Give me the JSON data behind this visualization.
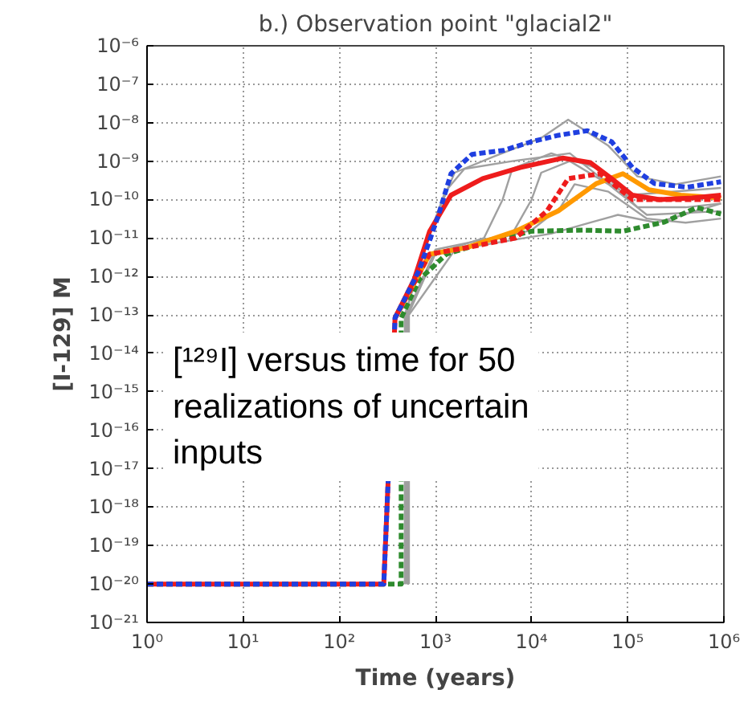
{
  "chart_data": {
    "type": "line",
    "title": "b.) Observation point \"glacial2\"",
    "xlabel": "Time (years)",
    "ylabel": "[I-129] M",
    "annotations": [
      "[¹²⁹I] versus time for 50 realizations of uncertain inputs"
    ],
    "log": "xy",
    "grid": true,
    "marker": "none",
    "xlim": [
      1,
      1000000
    ],
    "ylim": [
      1e-21,
      1e-06
    ],
    "xticks": [
      {
        "value": 1,
        "label": "10⁰"
      },
      {
        "value": 10,
        "label": "10¹"
      },
      {
        "value": 100,
        "label": "10²"
      },
      {
        "value": 1000,
        "label": "10³"
      },
      {
        "value": 10000,
        "label": "10⁴"
      },
      {
        "value": 100000,
        "label": "10⁵"
      },
      {
        "value": 1000000,
        "label": "10⁶"
      }
    ],
    "yticks": [
      {
        "value": 1e-21,
        "label": "10⁻²¹"
      },
      {
        "value": 1e-20,
        "label": "10⁻²⁰"
      },
      {
        "value": 1e-19,
        "label": "10⁻¹⁹"
      },
      {
        "value": 1e-18,
        "label": "10⁻¹⁸"
      },
      {
        "value": 1e-17,
        "label": "10⁻¹⁷"
      },
      {
        "value": 1e-16,
        "label": "10⁻¹⁶"
      },
      {
        "value": 1e-15,
        "label": "10⁻¹⁵"
      },
      {
        "value": 1e-14,
        "label": "10⁻¹⁴"
      },
      {
        "value": 1e-13,
        "label": "10⁻¹³"
      },
      {
        "value": 1e-12,
        "label": "10⁻¹²"
      },
      {
        "value": 1e-11,
        "label": "10⁻¹¹"
      },
      {
        "value": 1e-10,
        "label": "10⁻¹⁰"
      },
      {
        "value": 1e-09,
        "label": "10⁻⁹"
      },
      {
        "value": 1e-08,
        "label": "10⁻⁸"
      },
      {
        "value": 1e-07,
        "label": "10⁻⁷"
      },
      {
        "value": 1e-06,
        "label": "10⁻⁶"
      }
    ],
    "series": [
      {
        "color": "#a0a0a0",
        "line_style": "solid",
        "x": [
          490,
          490,
          710,
          1120,
          1580,
          4000,
          12600,
          24000,
          63000,
          126000,
          316000,
          933000
        ],
        "values": [
          1e-20,
          1e-13,
          3.2e-12,
          6.3e-11,
          5e-10,
          1.3e-09,
          4e-09,
          1.2e-08,
          2.5e-09,
          4e-10,
          2.5e-10,
          4e-10
        ]
      },
      {
        "color": "#a0a0a0",
        "line_style": "solid",
        "x": [
          520,
          520,
          1000,
          3200,
          5000,
          6300,
          16000,
          50000,
          126000,
          400000,
          933000
        ],
        "values": [
          1e-20,
          1e-13,
          4e-12,
          1e-11,
          1e-10,
          6.3e-10,
          1.6e-09,
          6.3e-10,
          6.3e-11,
          6.3e-11,
          7.9e-11
        ]
      },
      {
        "color": "#a0a0a0",
        "line_style": "solid",
        "x": [
          500,
          500,
          1000,
          6300,
          10000,
          12600,
          25000,
          63000,
          158000,
          933000
        ],
        "values": [
          1e-20,
          1e-13,
          5e-12,
          1.3e-11,
          1e-10,
          5e-10,
          1e-09,
          2.5e-10,
          4e-11,
          5e-11
        ]
      },
      {
        "color": "#a0a0a0",
        "line_style": "solid",
        "x": [
          510,
          510,
          1000,
          10000,
          20000,
          28000,
          63000,
          158000,
          400000,
          933000
        ],
        "values": [
          1e-20,
          1e-13,
          4e-12,
          1.6e-11,
          6.3e-11,
          2.5e-10,
          1.6e-10,
          3.2e-11,
          2.5e-11,
          3.2e-11
        ]
      },
      {
        "color": "#a0a0a0",
        "line_style": "solid",
        "x": [
          530,
          530,
          1600,
          16000,
          40000,
          79000,
          200000,
          933000
        ],
        "values": [
          1e-20,
          1e-13,
          5e-12,
          1.3e-11,
          2.5e-11,
          4e-11,
          2.5e-11,
          7.9e-11
        ]
      },
      {
        "color": "#a0a0a0",
        "line_style": "solid",
        "x": [
          480,
          480,
          790,
          1260,
          2000,
          6300,
          25000,
          50000,
          100000,
          933000
        ],
        "values": [
          1e-20,
          1e-13,
          6.3e-12,
          1.6e-10,
          6.3e-10,
          1e-09,
          1.6e-09,
          4e-10,
          1.3e-10,
          2e-10
        ]
      },
      {
        "color": "#2e8b2e",
        "line_style": "dashed",
        "x": [
          1,
          440,
          440,
          680,
          1300,
          3100,
          10000,
          35000,
          89000,
          240000,
          525000,
          933000
        ],
        "values": [
          1e-20,
          1e-20,
          8.3e-14,
          8.3e-13,
          3.8e-12,
          7.4e-12,
          1.5e-11,
          1.6e-11,
          1.5e-11,
          2.6e-11,
          6.2e-11,
          4.2e-11
        ]
      },
      {
        "color": "#ff9900",
        "line_style": "solid",
        "x": [
          380,
          870,
          2100,
          6800,
          19000,
          47000,
          89000,
          166000,
          355000,
          933000
        ],
        "values": [
          8.3e-14,
          3.8e-12,
          5.6e-12,
          1.5e-11,
          5.1e-11,
          2.6e-10,
          4.7e-10,
          1.8e-10,
          1.3e-10,
          1.1e-10
        ]
      },
      {
        "color": "#ee1c1c",
        "line_style": "dashed",
        "x": [
          380,
          870,
          2100,
          6800,
          14500,
          24000,
          52000,
          112000,
          316000,
          933000
        ],
        "values": [
          8.3e-14,
          3.8e-12,
          5.6e-12,
          1e-11,
          5.1e-11,
          3.5e-10,
          4.7e-10,
          1e-10,
          1e-10,
          1e-10
        ]
      },
      {
        "color": "#ee1c1c",
        "line_style": "solid",
        "x": [
          1,
          290,
          380,
          600,
          870,
          1450,
          3100,
          7600,
          21000,
          41000,
          68000,
          112000,
          214000,
          468000,
          933000
        ],
        "values": [
          1e-20,
          1e-20,
          8.3e-14,
          8.3e-13,
          1.5e-11,
          1.3e-10,
          3.5e-10,
          6.8e-10,
          1.2e-09,
          9.1e-10,
          3.5e-10,
          1.3e-10,
          1e-10,
          1.1e-10,
          1.3e-10
        ]
      },
      {
        "color": "#1f3fe0",
        "line_style": "dashed",
        "x": [
          1,
          290,
          380,
          680,
          1070,
          1450,
          2400,
          5100,
          10000,
          19000,
          38000,
          68000,
          112000,
          190000,
          417000,
          933000
        ],
        "values": [
          1e-20,
          1e-20,
          8.3e-14,
          1.5e-12,
          3.8e-11,
          4.7e-10,
          1.5e-09,
          1.9e-09,
          3.2e-09,
          4.7e-09,
          6.2e-09,
          3.2e-09,
          6.8e-10,
          2.6e-10,
          2.1e-10,
          2.9e-10
        ]
      }
    ]
  }
}
